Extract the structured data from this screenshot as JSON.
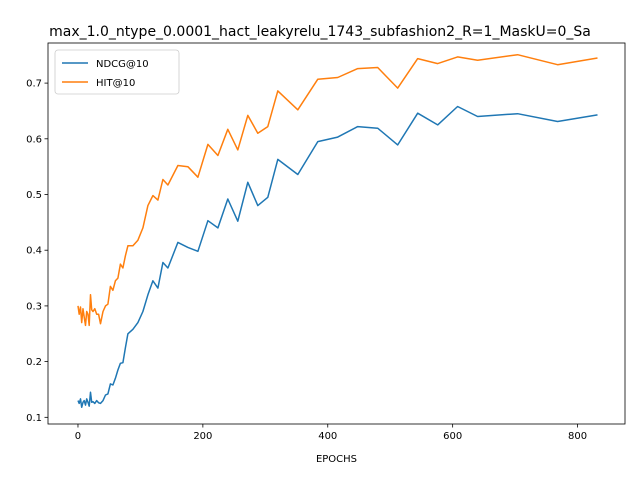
{
  "chart_data": {
    "type": "line",
    "title": "max_1.0_ntype_0.0001_hact_leakyrelu_1743_subfashion2_R=1_MaskU=0_Sa",
    "xlabel": "EPOCHS",
    "ylabel": "",
    "xlim": [
      -48,
      876
    ],
    "ylim": [
      0.088,
      0.772
    ],
    "xticks": [
      0,
      200,
      400,
      600,
      800
    ],
    "yticks": [
      0.1,
      0.2,
      0.3,
      0.4,
      0.5,
      0.6,
      0.7
    ],
    "legend": "top-left",
    "series": [
      {
        "name": "NDCG@10",
        "color": "#1f77b4",
        "x": [
          0,
          2,
          4,
          6,
          8,
          10,
          12,
          14,
          16,
          18,
          20,
          22,
          24,
          27,
          30,
          33,
          36,
          40,
          44,
          48,
          52,
          56,
          60,
          64,
          68,
          72,
          76,
          80,
          88,
          96,
          104,
          112,
          120,
          128,
          136,
          144,
          160,
          176,
          192,
          208,
          224,
          240,
          256,
          272,
          288,
          304,
          320,
          352,
          384,
          416,
          448,
          480,
          512,
          544,
          576,
          608,
          640,
          704,
          768,
          832
        ],
        "y": [
          0.13,
          0.125,
          0.133,
          0.118,
          0.127,
          0.13,
          0.122,
          0.133,
          0.127,
          0.12,
          0.145,
          0.127,
          0.128,
          0.125,
          0.13,
          0.126,
          0.125,
          0.13,
          0.14,
          0.142,
          0.16,
          0.158,
          0.17,
          0.185,
          0.197,
          0.198,
          0.225,
          0.25,
          0.258,
          0.27,
          0.29,
          0.32,
          0.345,
          0.332,
          0.378,
          0.368,
          0.414,
          0.405,
          0.398,
          0.453,
          0.44,
          0.492,
          0.452,
          0.522,
          0.48,
          0.495,
          0.563,
          0.536,
          0.595,
          0.603,
          0.622,
          0.619,
          0.589,
          0.646,
          0.625,
          0.658,
          0.64,
          0.645,
          0.631,
          0.643
        ]
      },
      {
        "name": "HIT@10",
        "color": "#ff7f0e",
        "x": [
          0,
          2,
          4,
          6,
          8,
          10,
          12,
          14,
          16,
          18,
          20,
          22,
          24,
          27,
          30,
          33,
          36,
          40,
          44,
          48,
          52,
          56,
          60,
          64,
          68,
          72,
          76,
          80,
          88,
          96,
          104,
          112,
          120,
          128,
          136,
          144,
          160,
          176,
          192,
          208,
          224,
          240,
          256,
          272,
          288,
          304,
          320,
          352,
          384,
          416,
          448,
          480,
          512,
          544,
          576,
          608,
          640,
          704,
          768,
          832
        ],
        "y": [
          0.3,
          0.285,
          0.298,
          0.27,
          0.295,
          0.28,
          0.265,
          0.29,
          0.285,
          0.265,
          0.32,
          0.293,
          0.29,
          0.295,
          0.285,
          0.285,
          0.268,
          0.29,
          0.3,
          0.303,
          0.335,
          0.328,
          0.345,
          0.35,
          0.375,
          0.368,
          0.39,
          0.408,
          0.408,
          0.418,
          0.44,
          0.48,
          0.498,
          0.49,
          0.527,
          0.517,
          0.552,
          0.55,
          0.531,
          0.59,
          0.57,
          0.617,
          0.58,
          0.642,
          0.61,
          0.622,
          0.686,
          0.652,
          0.707,
          0.71,
          0.726,
          0.728,
          0.691,
          0.744,
          0.735,
          0.747,
          0.741,
          0.751,
          0.733,
          0.745
        ]
      }
    ]
  }
}
